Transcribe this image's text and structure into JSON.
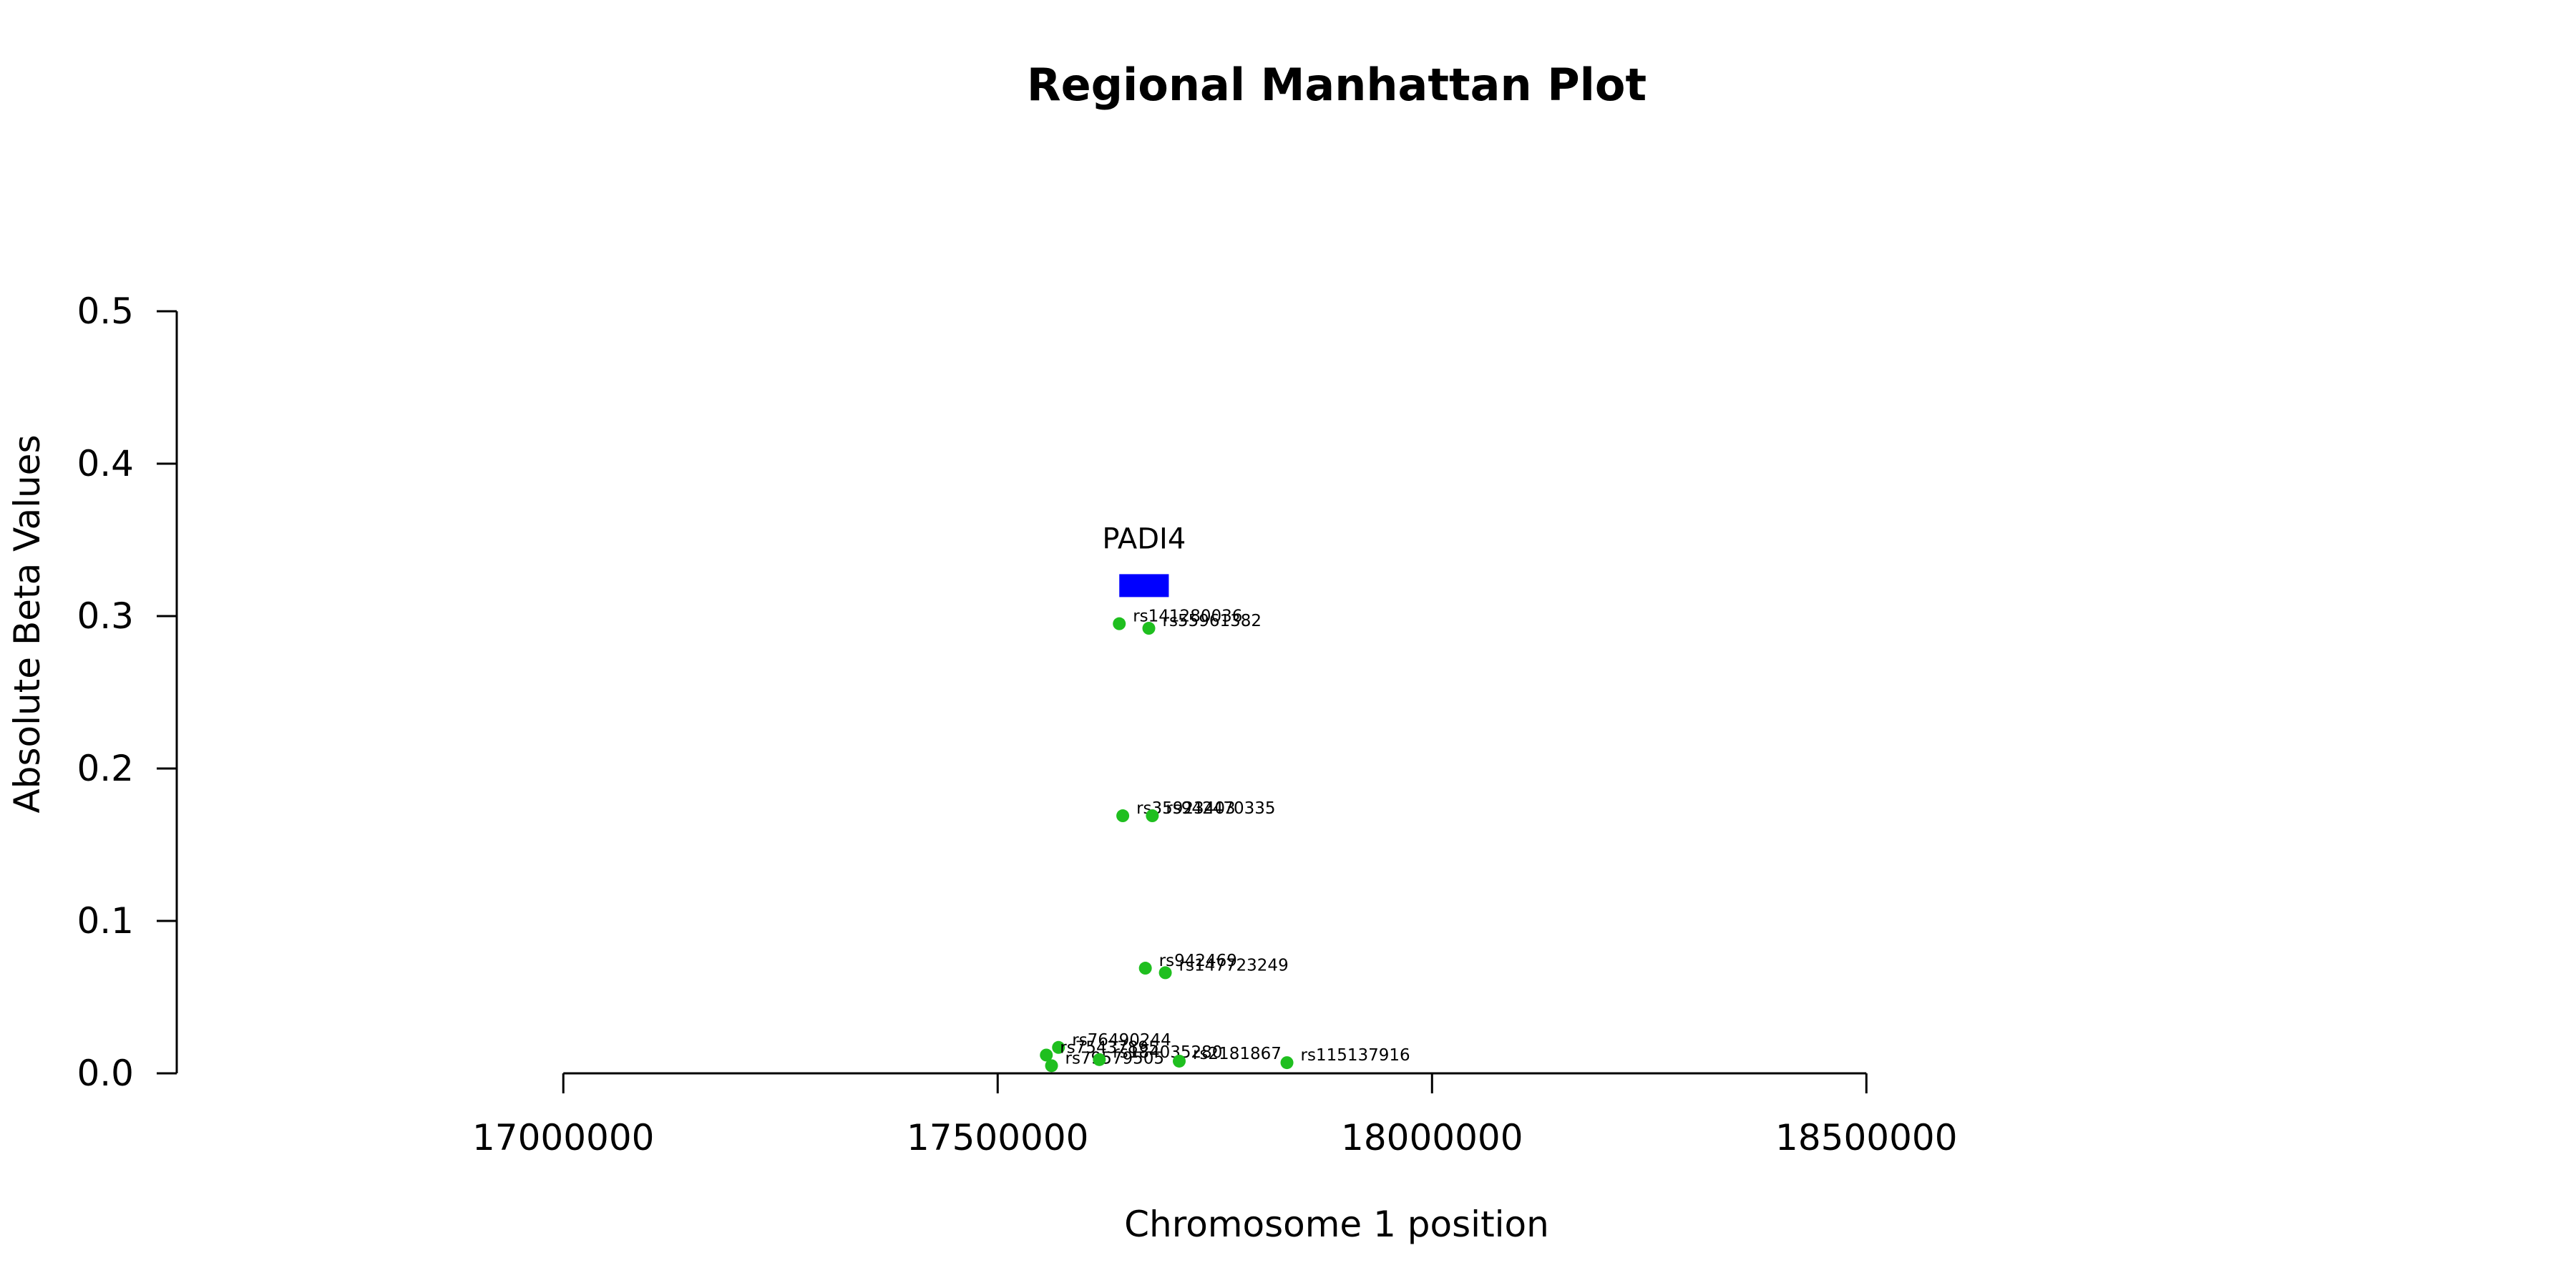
{
  "chart_data": {
    "type": "scatter",
    "title": "Regional Manhattan Plot",
    "xlabel": "Chromosome 1 position",
    "ylabel": "Absolute Beta Values",
    "xlim": [
      16555000,
      18835000
    ],
    "ylim": [
      0,
      0.5
    ],
    "x_ticks": [
      17000000,
      17500000,
      18000000,
      18500000
    ],
    "x_tick_labels": [
      "17000000",
      "17500000",
      "18000000",
      "18500000"
    ],
    "y_ticks": [
      0,
      0.1,
      0.2,
      0.3,
      0.4,
      0.5
    ],
    "y_tick_labels": [
      "0.0",
      "0.1",
      "0.2",
      "0.3",
      "0.4",
      "0.5"
    ],
    "grid": false,
    "point_color": "#1fbf1f",
    "points": [
      {
        "label": "rs141280036",
        "x": 17640000,
        "y": 0.295
      },
      {
        "label": "rs55961382",
        "x": 17674000,
        "y": 0.292
      },
      {
        "label": "rs35923403",
        "x": 17644000,
        "y": 0.169
      },
      {
        "label": "rs942470335",
        "x": 17678000,
        "y": 0.169
      },
      {
        "label": "rs942469",
        "x": 17670000,
        "y": 0.069
      },
      {
        "label": "rs147723249",
        "x": 17693000,
        "y": 0.066
      },
      {
        "label": "rs76490244",
        "x": 17570000,
        "y": 0.017
      },
      {
        "label": "rs75437895",
        "x": 17556000,
        "y": 0.012
      },
      {
        "label": "rs79579505",
        "x": 17562000,
        "y": 0.005
      },
      {
        "label": "rs184035280",
        "x": 17617000,
        "y": 0.009
      },
      {
        "label": "rs2181867",
        "x": 17709000,
        "y": 0.008
      },
      {
        "label": "rs115137916",
        "x": 17833000,
        "y": 0.007
      }
    ],
    "gene": {
      "name": "PADI4",
      "start": 17640000,
      "end": 17697000,
      "y": 0.32,
      "color": "#0000ff"
    }
  }
}
